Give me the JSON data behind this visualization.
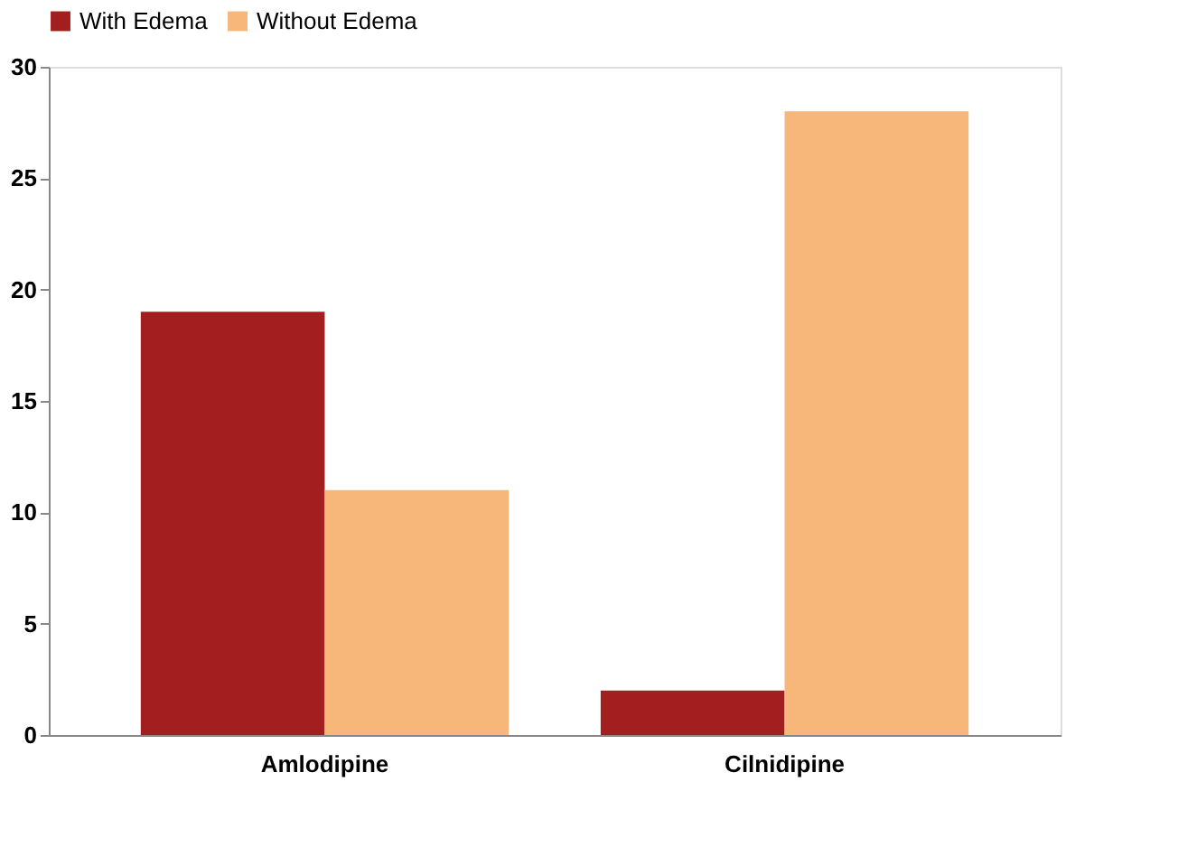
{
  "chart_data": {
    "type": "bar",
    "categories": [
      "Amlodipine",
      "Cilnidipine"
    ],
    "series": [
      {
        "name": "With Edema",
        "color": "#a31f1f",
        "values": [
          19,
          2
        ]
      },
      {
        "name": "Without Edema",
        "color": "#f8b77a",
        "values": [
          11,
          28
        ]
      }
    ],
    "ylim": [
      0,
      30
    ],
    "yticks": [
      0,
      5,
      10,
      15,
      20,
      25,
      30
    ],
    "grid": false,
    "legend": "top"
  }
}
